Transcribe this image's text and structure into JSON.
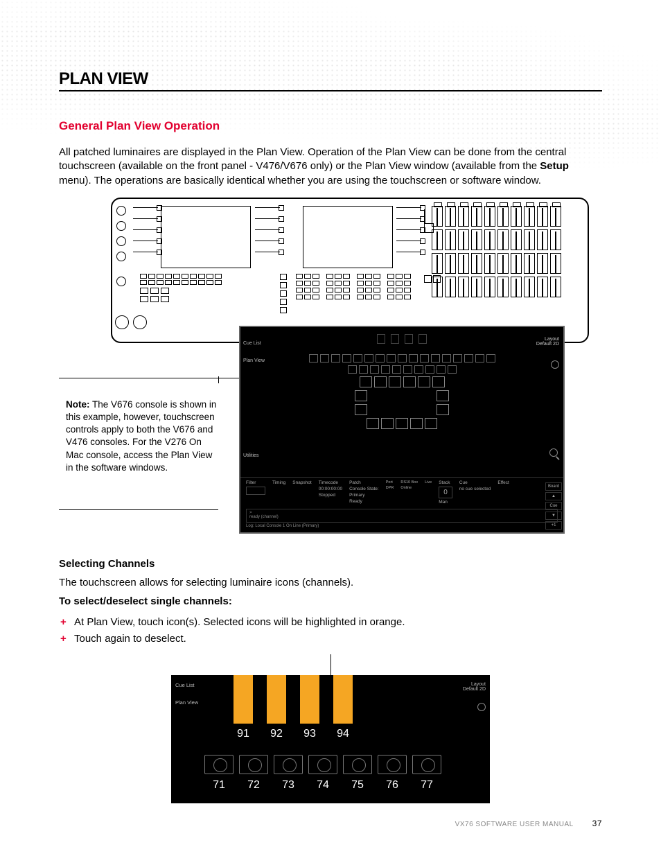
{
  "colors": {
    "accent_red": "#e2002f",
    "orange_highlight": "#f5a623",
    "black": "#000000",
    "white": "#ffffff",
    "panel_bg": "#000000",
    "panel_border": "#666666",
    "muted_text": "#aaaaaa",
    "dot_grey": "#d8d8d8"
  },
  "typography": {
    "h1_size_pt": 18,
    "h2_size_pt": 13,
    "body_size_pt": 11,
    "font_family": "Arial"
  },
  "heading": "PLAN VIEW",
  "subheading": "General Plan View Operation",
  "intro_html": "All patched luminaires are displayed in the Plan View. Operation of the Plan View can be done from the central touchscreen (available on the front panel - V476/V676 only) or the Plan View window (available from the <b>Setup</b> menu). The operations are basically identical whether you are using the touchscreen or software window.",
  "note_label": "Note:",
  "note_text": "The V676 console is shown in this example, however, touchscreen controls apply to both the V676 and V476 consoles. For the V276 On Mac console, access the Plan View in the software windows.",
  "touchscreen": {
    "left_tabs": [
      "Cue List",
      "Plan View",
      "Utilities"
    ],
    "right_label_top": "Layout",
    "right_label_sub": "Default 2D",
    "luminaire_rows": [
      {
        "count": 17
      },
      {
        "count": 10
      },
      {
        "count": 6,
        "big": true
      },
      {
        "count": 2,
        "big": true,
        "spread": true
      },
      {
        "count": 2,
        "big": true,
        "spread": true
      },
      {
        "count": 5,
        "big": true
      }
    ],
    "bottom_labels": {
      "filter": "Filter",
      "timing": "Timing",
      "snapshot": "Snapshot",
      "timecode_label": "Timecode",
      "timecode": "00:00:00:00",
      "timecode_state": "Stopped",
      "patch_label": "Patch",
      "console_state_label": "Console State:",
      "console_state": "Primary",
      "ready": "Ready",
      "port": "Port",
      "rs10_box": "RS10\nBox",
      "live": "Live",
      "dpr": "DPR",
      "online": "Online",
      "stack_label": "Stack",
      "stack_value": "0",
      "man": "Man",
      "cue_label": "Cue",
      "no_cue": "no cue selected",
      "effect": "Effect",
      "board": "Board",
      "cue_btn": "Cue",
      "plus1": "+1"
    },
    "cmd_prefix": ">",
    "cmd_hint": "ready (channel)",
    "log": "Log: Local Console 1 On Line (Primary)"
  },
  "section2_heading": "Selecting Channels",
  "section2_intro": "The touchscreen allows for selecting luminaire icons (channels).",
  "section2_instr_label": "To select/deselect single channels:",
  "section2_bullets": [
    "At Plan View, touch icon(s). Selected icons will be highlighted in orange.",
    "Touch again to deselect."
  ],
  "shot2": {
    "left_tabs": [
      "Cue List",
      "Plan View"
    ],
    "right_label_top": "Layout",
    "right_label_sub": "Default 2D",
    "selected_channels": [
      "91",
      "92",
      "93",
      "94"
    ],
    "unselected_channels": [
      "71",
      "72",
      "73",
      "74",
      "75",
      "76",
      "77"
    ]
  },
  "footer_text": "VX76 SOFTWARE USER MANUAL",
  "page_number": "37"
}
